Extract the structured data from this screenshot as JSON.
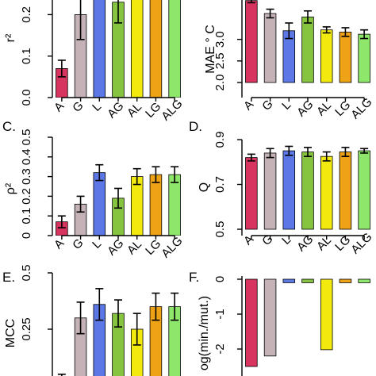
{
  "categories": [
    "A",
    "G",
    "L",
    "AG",
    "AL",
    "LG",
    "ALG"
  ],
  "colors": [
    "#d7345f",
    "#c4b2b6",
    "#5b78e6",
    "#86c440",
    "#f2ea0f",
    "#eea215",
    "#8ee66a"
  ],
  "chart_data": [
    {
      "id": "A",
      "type": "bar",
      "panel_label": "",
      "ylabel": "r²",
      "ylim": [
        0,
        0.35
      ],
      "yticks": [
        0.0,
        0.1,
        0.2
      ],
      "ytick_labels": [
        "0.0",
        "0.1",
        "0.2"
      ],
      "values": [
        0.07,
        0.2,
        0.3,
        0.23,
        0.31,
        0.34,
        0.36
      ],
      "errors": [
        0.02,
        0.06,
        0.04,
        0.05,
        0.04,
        0.05,
        0.05
      ]
    },
    {
      "id": "B",
      "type": "bar",
      "panel_label": "",
      "ylabel": "MAE ° C",
      "ylim": [
        2.0,
        3.95
      ],
      "yticks": [
        2.0,
        2.5,
        3.0
      ],
      "ytick_labels": [
        "2.0",
        "2.5",
        "3.0"
      ],
      "values": [
        3.9,
        3.6,
        3.2,
        3.52,
        3.22,
        3.17,
        3.12
      ],
      "errors": [
        0.05,
        0.1,
        0.18,
        0.14,
        0.07,
        0.1,
        0.1
      ]
    },
    {
      "id": "C",
      "type": "bar",
      "panel_label": "C.",
      "ylabel": "ρ²",
      "ylim": [
        0,
        0.5
      ],
      "yticks": [
        0.0,
        0.1,
        0.2,
        0.3,
        0.4,
        0.5
      ],
      "ytick_labels": [
        "0",
        "0.1",
        "0.2",
        "0.3",
        "0.4",
        "0.5"
      ],
      "values": [
        0.07,
        0.16,
        0.32,
        0.19,
        0.3,
        0.31,
        0.31
      ],
      "errors": [
        0.03,
        0.04,
        0.04,
        0.05,
        0.04,
        0.04,
        0.04
      ]
    },
    {
      "id": "D",
      "type": "bar",
      "panel_label": "D.",
      "ylabel": "Q",
      "ylim": [
        0.5,
        0.9
      ],
      "yticks": [
        0.5,
        0.7,
        0.9
      ],
      "ytick_labels": [
        "0.5",
        "0.7",
        "0.9"
      ],
      "values": [
        0.82,
        0.84,
        0.85,
        0.845,
        0.825,
        0.845,
        0.85
      ],
      "errors": [
        0.015,
        0.02,
        0.02,
        0.02,
        0.02,
        0.02,
        0.01
      ]
    },
    {
      "id": "E",
      "type": "bar",
      "panel_label": "E.",
      "ylabel": "MCC",
      "ylim": [
        0,
        0.5
      ],
      "yticks": [
        0.25,
        0.5
      ],
      "ytick_labels": [
        "0.25",
        "0.5"
      ],
      "values": [
        0.02,
        0.3,
        0.36,
        0.32,
        0.25,
        0.35,
        0.35
      ],
      "errors": [
        0.03,
        0.07,
        0.07,
        0.06,
        0.07,
        0.06,
        0.06
      ]
    },
    {
      "id": "F",
      "type": "bar",
      "panel_label": "F.",
      "ylabel": "og(min./mut.)",
      "ylim": [
        -2.5,
        0
      ],
      "yticks": [
        0,
        -1,
        -2
      ],
      "ytick_labels": [
        "0",
        "-1",
        "-2"
      ],
      "values": [
        -2.5,
        -2.2,
        -0.1,
        -0.1,
        -2.02,
        -0.1,
        -0.1
      ],
      "errors": [
        0,
        0,
        0,
        0,
        0,
        0,
        0
      ]
    }
  ]
}
